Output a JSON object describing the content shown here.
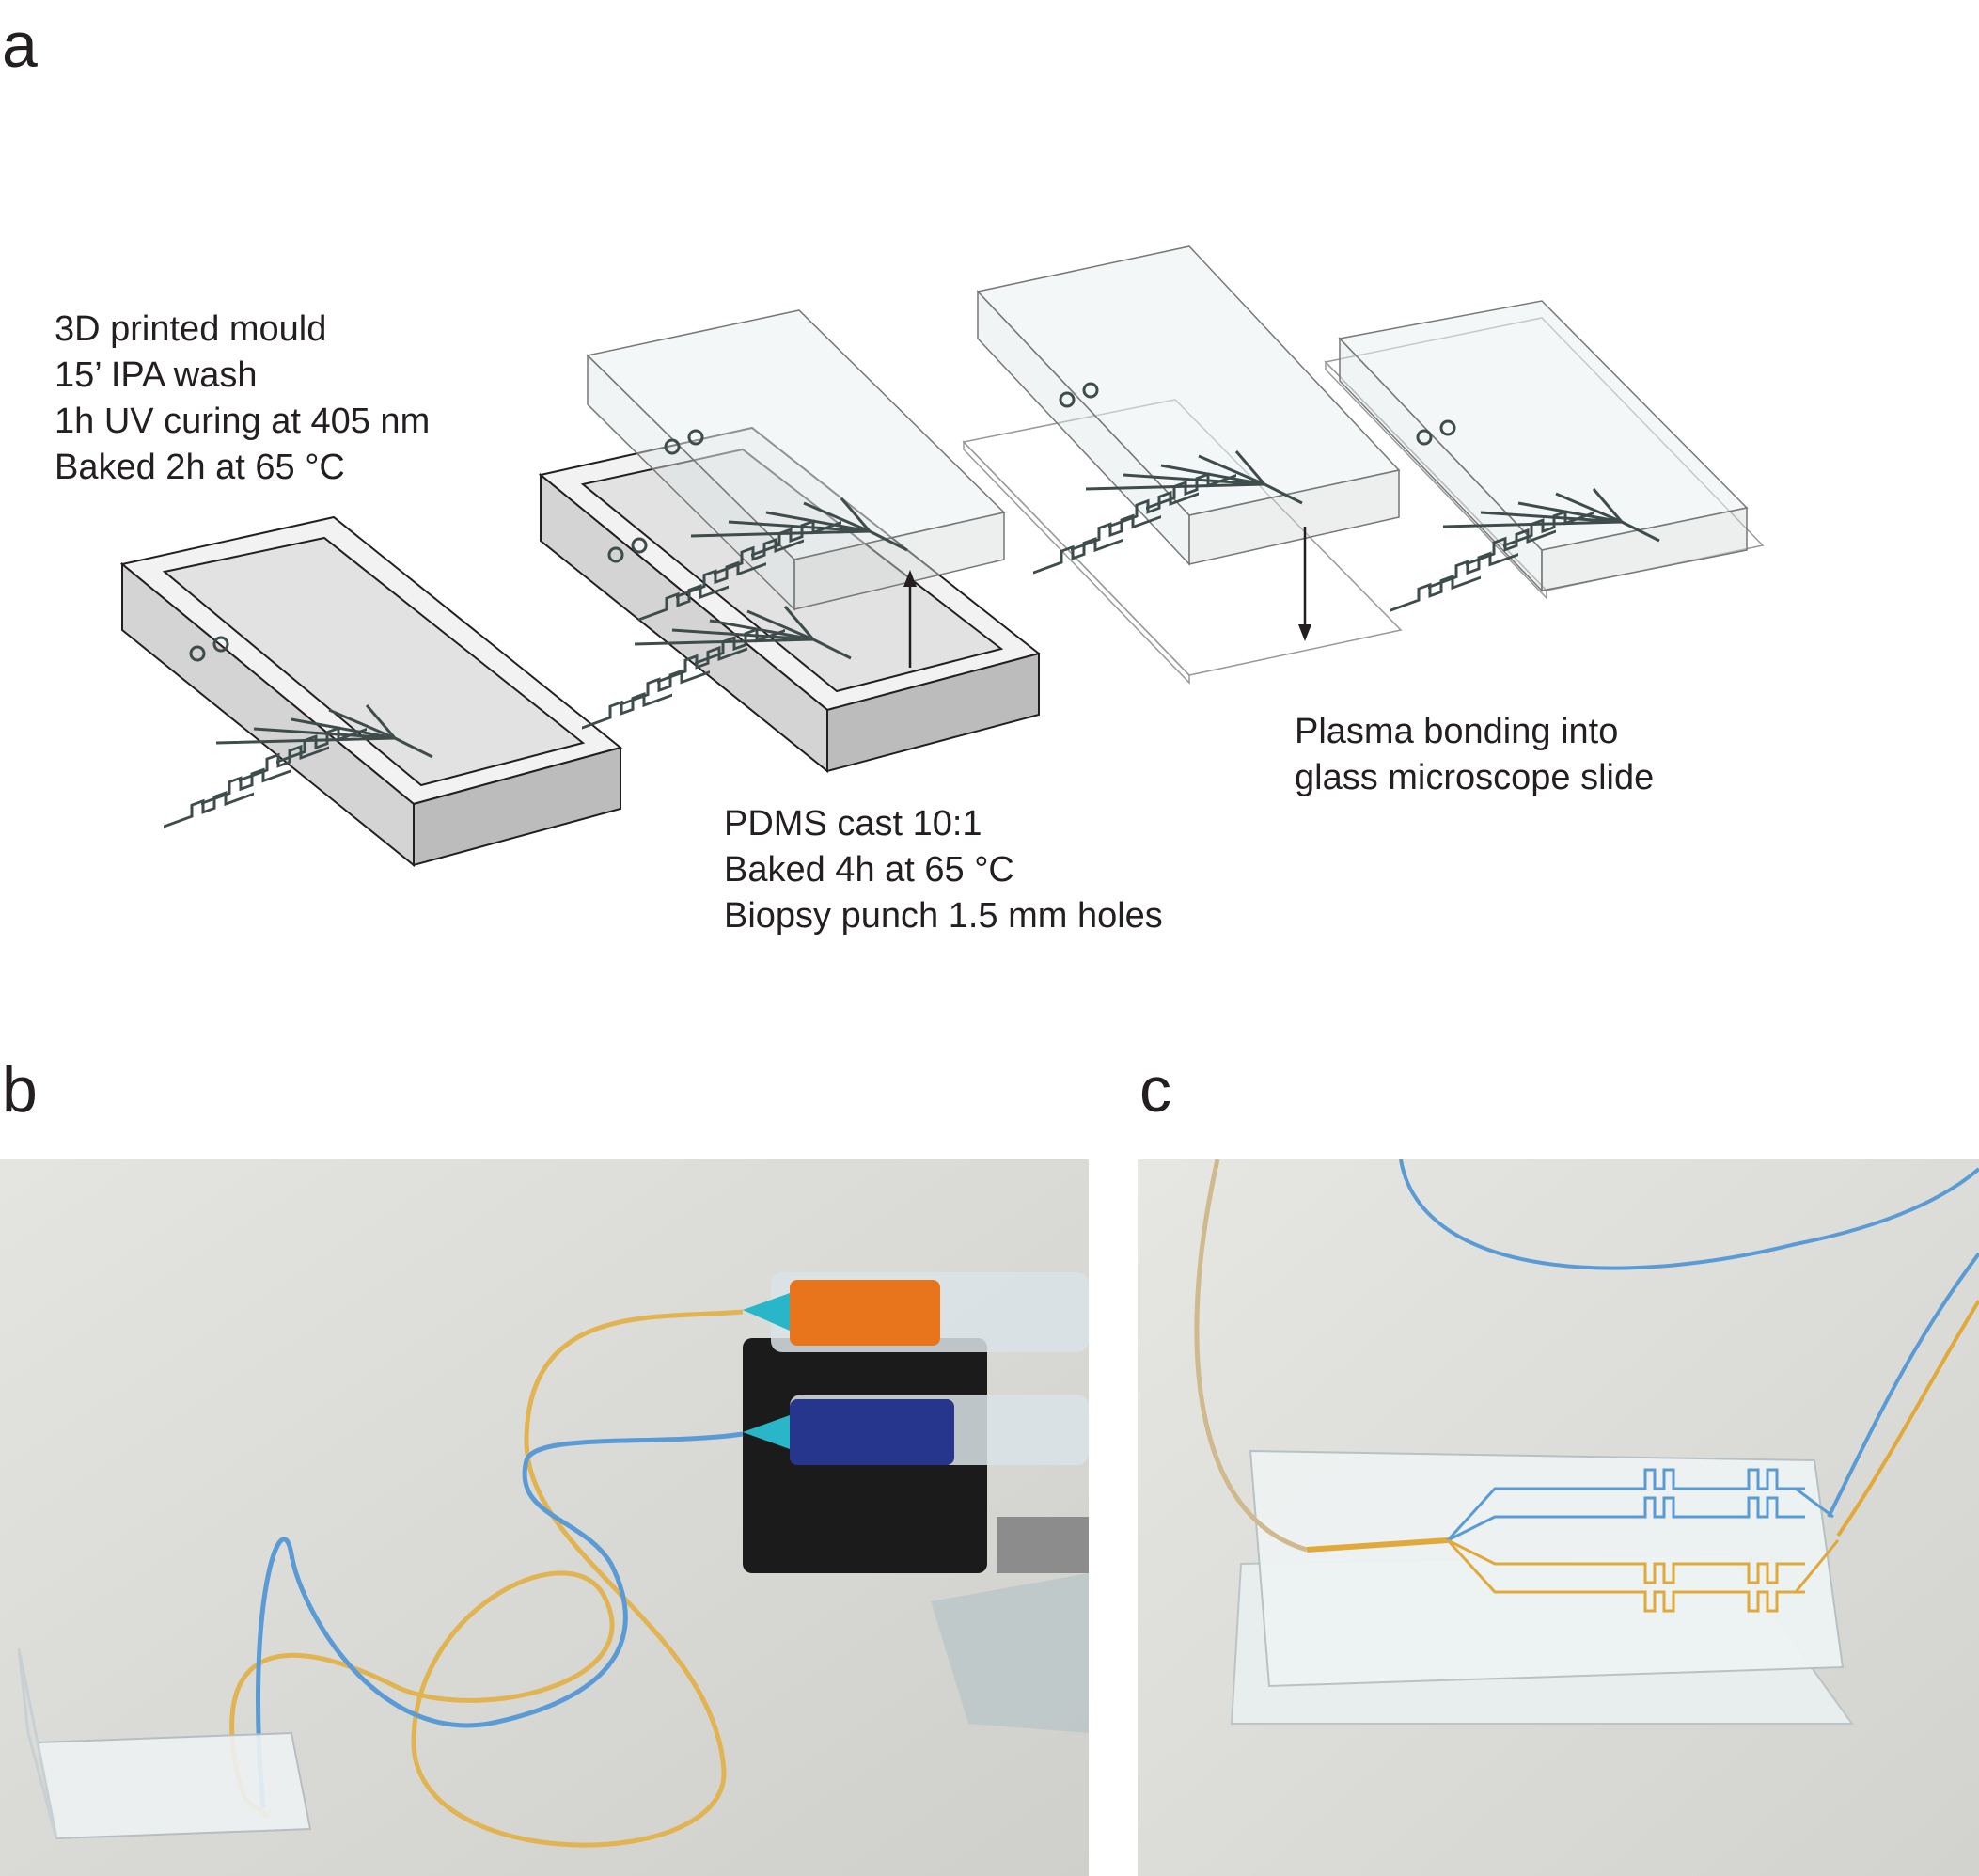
{
  "panels": {
    "a": {
      "label": "a",
      "steps": [
        {
          "lines": [
            "3D printed mould",
            "15’ IPA wash",
            "1h UV curing at 405 nm",
            "Baked 2h at 65 °C"
          ]
        },
        {
          "lines": [
            "PDMS cast 10:1",
            "Baked 4h at 65 °C",
            "Biopsy punch 1.5 mm holes"
          ]
        },
        {
          "lines": [
            "Plasma bonding into",
            "glass microscope slide"
          ]
        }
      ]
    },
    "b": {
      "label": "b"
    },
    "c": {
      "label": "c"
    }
  },
  "colors": {
    "ink": "#231f20",
    "mould_top": "#efefef",
    "mould_front": "#d6d6d6",
    "mould_side": "#bdbdbd",
    "channel": "#3e4c4b",
    "tube_blue": "#5b9bd5",
    "tube_yellow": "#e0a93a",
    "photo_background": "#dcdcd8"
  },
  "icons": [
    "mould-3d-icon",
    "pdms-chip-icon",
    "glass-slide-icon",
    "arrow-up-icon",
    "arrow-down-icon",
    "syringe-pump-icon",
    "microfluidic-chip-icon"
  ]
}
